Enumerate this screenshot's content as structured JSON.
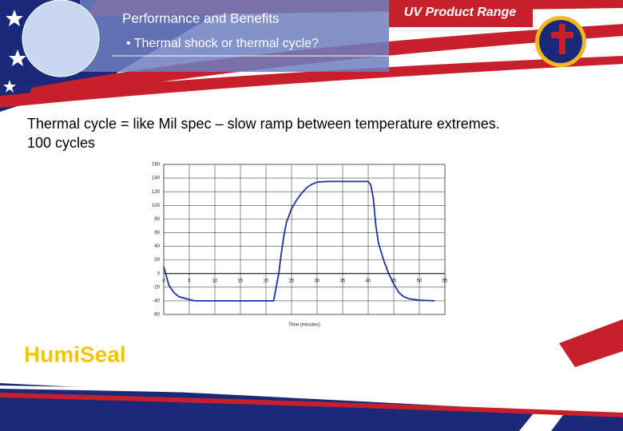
{
  "header": {
    "title": "Performance and Benefits",
    "bullet": "• Thermal shock or thermal cycle?",
    "product_range": "UV Product Range"
  },
  "body": {
    "line1": "Thermal cycle = like Mil spec – slow ramp between temperature extremes.",
    "line2": "100 cycles"
  },
  "logo": "HumiSeal",
  "chart_data": {
    "type": "line",
    "x_label": "Time (minutes)",
    "series": [
      {
        "color": "#1f2fa8",
        "x": [
          0,
          1,
          2,
          3,
          5,
          6,
          21,
          21.5,
          22,
          22.5,
          23,
          23.5,
          24,
          25,
          26,
          27,
          28,
          29,
          30,
          32,
          40,
          40.5,
          41,
          41.5,
          42,
          43,
          44,
          45,
          46,
          47,
          48,
          50,
          53
        ],
        "values": [
          10,
          -17,
          -28,
          -34,
          -38,
          -40,
          -40,
          -40,
          -20,
          0,
          30,
          55,
          75,
          95,
          108,
          118,
          126,
          131,
          134,
          135,
          135,
          130,
          110,
          70,
          45,
          20,
          0,
          -15,
          -28,
          -34,
          -37,
          -39,
          -40
        ]
      }
    ],
    "xlim": [
      0,
      55
    ],
    "xticks": [
      0,
      5,
      10,
      15,
      20,
      25,
      30,
      35,
      40,
      45,
      50,
      55
    ],
    "ylim": [
      -60,
      160
    ],
    "yticks": [
      -60,
      -40,
      -20,
      0,
      20,
      40,
      60,
      80,
      100,
      120,
      140,
      160
    ],
    "grid": true
  }
}
